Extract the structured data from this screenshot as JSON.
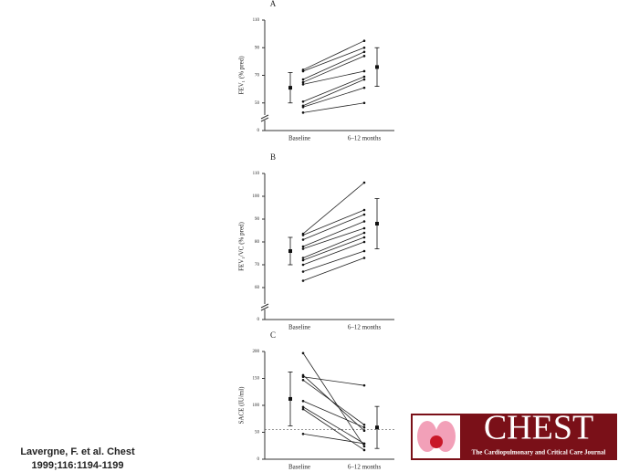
{
  "chart_data": [
    {
      "type": "paired",
      "panel": "A",
      "ylabel": "FEV₁ (% pred)",
      "categories": [
        "Baseline",
        "6–12 months"
      ],
      "ylim": [
        0,
        110
      ],
      "axis_break": [
        0,
        30
      ],
      "yticks": [
        0,
        50,
        70,
        90,
        110
      ],
      "series": [
        {
          "values": [
            74,
            95
          ]
        },
        {
          "values": [
            73,
            90
          ]
        },
        {
          "values": [
            67,
            87
          ]
        },
        {
          "values": [
            65,
            84
          ]
        },
        {
          "values": [
            63.5,
            73
          ]
        },
        {
          "values": [
            51,
            69
          ]
        },
        {
          "values": [
            48,
            67
          ]
        },
        {
          "values": [
            47,
            61
          ]
        },
        {
          "values": [
            43,
            50
          ]
        }
      ],
      "summary": [
        {
          "mean": 61,
          "sd": 11
        },
        {
          "mean": 76,
          "sd": 14
        }
      ]
    },
    {
      "type": "paired",
      "panel": "B",
      "ylabel": "FEV₁/VC (% pred)",
      "categories": [
        "Baseline",
        "6–12 months"
      ],
      "ylim": [
        0,
        110
      ],
      "axis_break": [
        0,
        46
      ],
      "yticks": [
        0,
        60,
        70,
        80,
        90,
        100,
        110
      ],
      "series": [
        {
          "values": [
            83.6,
            106
          ]
        },
        {
          "values": [
            83,
            94
          ]
        },
        {
          "values": [
            81,
            92
          ]
        },
        {
          "values": [
            78,
            89
          ]
        },
        {
          "values": [
            77,
            86
          ]
        },
        {
          "values": [
            73,
            84
          ]
        },
        {
          "values": [
            72,
            82
          ]
        },
        {
          "values": [
            70,
            80
          ]
        },
        {
          "values": [
            67,
            76
          ]
        },
        {
          "values": [
            63,
            73
          ]
        }
      ],
      "summary": [
        {
          "mean": 76,
          "sd": 6
        },
        {
          "mean": 88,
          "sd": 11
        }
      ]
    },
    {
      "type": "paired",
      "panel": "C",
      "ylabel": "SACE (IU/ml)",
      "categories": [
        "Baseline",
        "6–12 months"
      ],
      "ylim": [
        0,
        200
      ],
      "yticks": [
        0,
        50,
        100,
        150,
        200
      ],
      "reference_line": 55,
      "series": [
        {
          "values": [
            197,
            24
          ]
        },
        {
          "values": [
            153,
            137
          ]
        },
        {
          "values": [
            147,
            64
          ]
        },
        {
          "values": [
            156,
            53
          ]
        },
        {
          "values": [
            108,
            59
          ]
        },
        {
          "values": [
            97,
            29
          ]
        },
        {
          "values": [
            93,
            17
          ]
        },
        {
          "values": [
            47,
            29
          ]
        }
      ],
      "summary": [
        {
          "mean": 112,
          "sd": 50
        },
        {
          "mean": 59,
          "sd": 39
        }
      ]
    }
  ],
  "citation": [
    "Lavergne, F. et al. Chest",
    "1999;116:1194-1199"
  ],
  "logo": {
    "title": "CHEST",
    "subtitle": "The Cardiopulmonary and Critical Care Journal"
  }
}
